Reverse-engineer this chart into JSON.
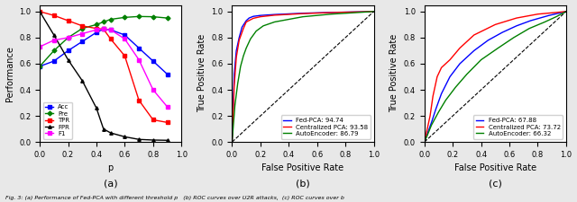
{
  "panel_a": {
    "p_values": [
      0.0,
      0.1,
      0.2,
      0.3,
      0.4,
      0.45,
      0.5,
      0.6,
      0.7,
      0.8,
      0.9
    ],
    "Acc": [
      0.58,
      0.62,
      0.7,
      0.77,
      0.84,
      0.865,
      0.86,
      0.82,
      0.72,
      0.62,
      0.52
    ],
    "Pre": [
      0.58,
      0.7,
      0.8,
      0.87,
      0.9,
      0.92,
      0.94,
      0.955,
      0.962,
      0.96,
      0.95
    ],
    "TPR": [
      1.0,
      0.97,
      0.93,
      0.89,
      0.87,
      0.865,
      0.79,
      0.66,
      0.32,
      0.17,
      0.15
    ],
    "FPR": [
      1.0,
      0.82,
      0.63,
      0.47,
      0.26,
      0.1,
      0.07,
      0.04,
      0.02,
      0.015,
      0.013
    ],
    "F1": [
      0.73,
      0.78,
      0.8,
      0.83,
      0.86,
      0.865,
      0.86,
      0.79,
      0.63,
      0.4,
      0.27
    ],
    "colors": {
      "Acc": "blue",
      "Pre": "green",
      "TPR": "red",
      "FPR": "black",
      "F1": "magenta"
    },
    "xlabel": "p",
    "ylabel": "Performance",
    "sublabel": "(a)"
  },
  "panel_b": {
    "fed_pca_fpr": [
      0.0,
      0.015,
      0.03,
      0.05,
      0.07,
      0.1,
      0.12,
      0.15,
      0.2,
      0.3,
      0.5,
      0.7,
      1.0
    ],
    "fed_pca_tpr": [
      0.0,
      0.52,
      0.7,
      0.8,
      0.88,
      0.93,
      0.95,
      0.963,
      0.97,
      0.977,
      0.987,
      0.993,
      1.0
    ],
    "cent_pca_fpr": [
      0.0,
      0.015,
      0.03,
      0.05,
      0.08,
      0.1,
      0.15,
      0.2,
      0.3,
      0.5,
      0.7,
      1.0
    ],
    "cent_pca_tpr": [
      0.0,
      0.43,
      0.65,
      0.78,
      0.87,
      0.92,
      0.948,
      0.96,
      0.972,
      0.984,
      0.992,
      1.0
    ],
    "autoenc_fpr": [
      0.0,
      0.02,
      0.04,
      0.06,
      0.08,
      0.1,
      0.13,
      0.17,
      0.22,
      0.3,
      0.5,
      0.7,
      1.0
    ],
    "autoenc_tpr": [
      0.0,
      0.28,
      0.45,
      0.58,
      0.66,
      0.72,
      0.79,
      0.85,
      0.89,
      0.92,
      0.96,
      0.98,
      1.0
    ],
    "legend": [
      "Fed-PCA: 94.74",
      "Centralized PCA: 93.58",
      "AutoEncoder: 86.79"
    ],
    "colors": [
      "blue",
      "red",
      "green"
    ],
    "xlabel": "False Positive Rate",
    "ylabel": "True Positive Rate",
    "sublabel": "(b)"
  },
  "panel_c": {
    "fed_pca_fpr": [
      0.0,
      0.02,
      0.05,
      0.08,
      0.12,
      0.18,
      0.25,
      0.35,
      0.45,
      0.55,
      0.65,
      0.75,
      0.88,
      1.0
    ],
    "fed_pca_tpr": [
      0.0,
      0.06,
      0.15,
      0.25,
      0.37,
      0.5,
      0.6,
      0.7,
      0.78,
      0.84,
      0.89,
      0.93,
      0.97,
      1.0
    ],
    "cent_pca_fpr": [
      0.0,
      0.02,
      0.04,
      0.06,
      0.09,
      0.12,
      0.18,
      0.25,
      0.35,
      0.5,
      0.65,
      0.8,
      1.0
    ],
    "cent_pca_tpr": [
      0.0,
      0.1,
      0.2,
      0.35,
      0.5,
      0.57,
      0.63,
      0.72,
      0.82,
      0.9,
      0.95,
      0.98,
      1.0
    ],
    "autoenc_fpr": [
      0.0,
      0.02,
      0.05,
      0.1,
      0.15,
      0.22,
      0.3,
      0.4,
      0.52,
      0.63,
      0.74,
      0.85,
      0.93,
      1.0
    ],
    "autoenc_tpr": [
      0.0,
      0.05,
      0.13,
      0.23,
      0.32,
      0.42,
      0.52,
      0.63,
      0.72,
      0.8,
      0.87,
      0.92,
      0.96,
      1.0
    ],
    "legend": [
      "Fed-PCA: 67.88",
      "Centralized PCA: 73.72",
      "AutoEncoder: 66.32"
    ],
    "colors": [
      "blue",
      "red",
      "green"
    ],
    "xlabel": "False Positive Rate",
    "ylabel": "True Positive Rate",
    "sublabel": "(c)"
  },
  "bg_color": "#e8e8e8",
  "figure_caption": "Fig. 3: (a) Performance of Fed-PCA with different threshold p   (b) ROC curves over U2R attacks,  (c) ROC curves over b"
}
